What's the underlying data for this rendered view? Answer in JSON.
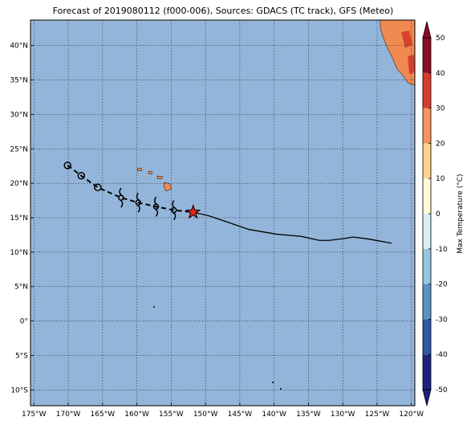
{
  "chart_data": {
    "type": "map",
    "title": "Forecast of 2019080112 (f000-006), Sources: GDACS (TC track), GFS (Meteo)",
    "xlim": [
      -175.5,
      -119.5
    ],
    "ylim": [
      -12.3,
      43.7
    ],
    "xticks": [
      {
        "value": -175,
        "label": "175°W"
      },
      {
        "value": -170,
        "label": "170°W"
      },
      {
        "value": -165,
        "label": "165°W"
      },
      {
        "value": -160,
        "label": "160°W"
      },
      {
        "value": -155,
        "label": "155°W"
      },
      {
        "value": -150,
        "label": "150°W"
      },
      {
        "value": -145,
        "label": "145°W"
      },
      {
        "value": -140,
        "label": "140°W"
      },
      {
        "value": -135,
        "label": "135°W"
      },
      {
        "value": -130,
        "label": "130°W"
      },
      {
        "value": -125,
        "label": "125°W"
      },
      {
        "value": -120,
        "label": "120°W"
      }
    ],
    "yticks": [
      {
        "value": -10,
        "label": "10°S"
      },
      {
        "value": -5,
        "label": "5°S"
      },
      {
        "value": 0,
        "label": "0°"
      },
      {
        "value": 5,
        "label": "5°N"
      },
      {
        "value": 10,
        "label": "10°N"
      },
      {
        "value": 15,
        "label": "15°N"
      },
      {
        "value": 20,
        "label": "20°N"
      },
      {
        "value": 25,
        "label": "25°N"
      },
      {
        "value": 30,
        "label": "30°N"
      },
      {
        "value": 35,
        "label": "35°N"
      },
      {
        "value": 40,
        "label": "40°N"
      }
    ],
    "grid": true,
    "past_track": {
      "lon": [
        -170.1,
        -168.1,
        -165.7,
        -162.3,
        -159.8,
        -157.2,
        -154.6,
        -151.8
      ],
      "lat": [
        22.6,
        21.1,
        19.4,
        17.9,
        17.2,
        16.6,
        16.1,
        15.8
      ],
      "markers": [
        "circle",
        "circle",
        "circle",
        "cyclone",
        "cyclone",
        "cyclone",
        "cyclone",
        "star"
      ]
    },
    "forecast_track": {
      "lon": [
        -151.8,
        -149.6,
        -146.6,
        -143.7,
        -139.6,
        -136.1,
        -133.4,
        -132.0,
        -129.7,
        -128.5,
        -126.2,
        -122.9
      ],
      "lat": [
        15.8,
        15.3,
        14.3,
        13.3,
        12.6,
        12.3,
        11.7,
        11.7,
        12.0,
        12.2,
        11.9,
        11.3
      ]
    },
    "colorbar": {
      "label": "Max Temperature (°C)",
      "lim": [
        -50,
        50
      ],
      "ticks": [
        -50,
        -40,
        -30,
        -20,
        -10,
        0,
        10,
        20,
        30,
        40,
        50
      ],
      "colors": [
        "#1c2180",
        "#2f58a6",
        "#5a92c6",
        "#96c6e0",
        "#d6eef4",
        "#fefbd6",
        "#fdd38f",
        "#f7935a",
        "#d83b2c",
        "#8c0b25"
      ]
    }
  }
}
